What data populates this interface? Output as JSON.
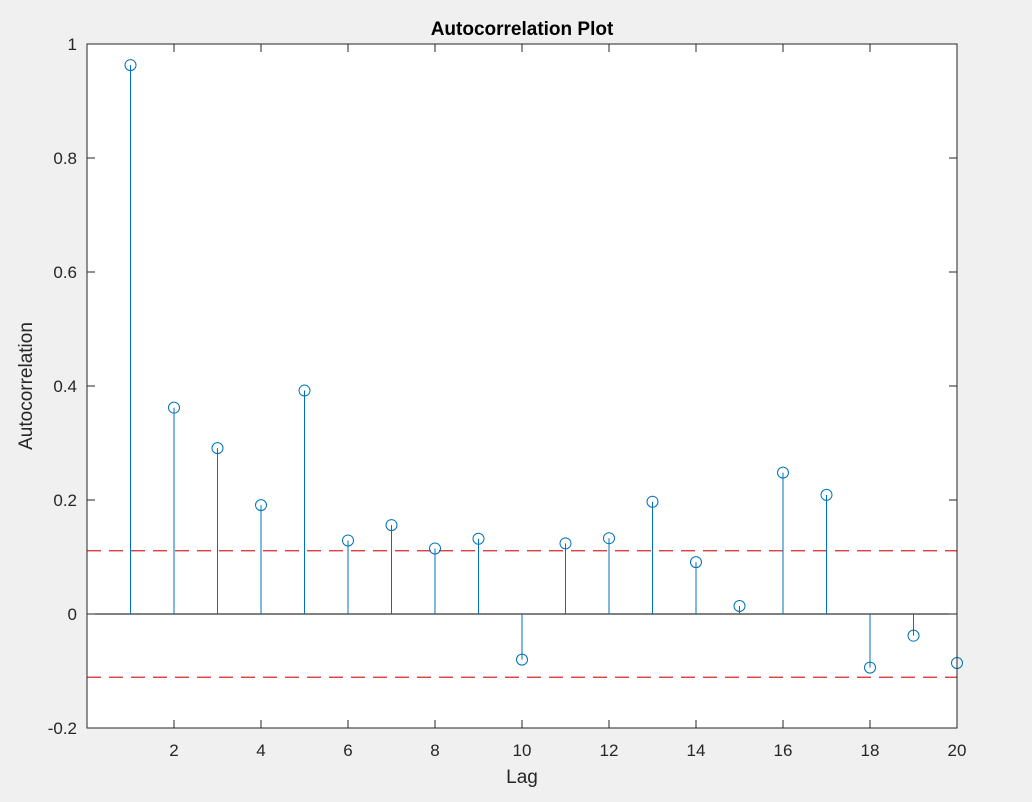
{
  "chart_data": {
    "type": "stem",
    "title": "Autocorrelation Plot",
    "xlabel": "Lag",
    "ylabel": "Autocorrelation",
    "x": [
      1,
      2,
      3,
      4,
      5,
      6,
      7,
      8,
      9,
      10,
      11,
      12,
      13,
      14,
      15,
      16,
      17,
      18,
      19,
      20
    ],
    "values": [
      0.963,
      0.362,
      0.291,
      0.191,
      0.392,
      0.129,
      0.156,
      0.115,
      0.132,
      -0.08,
      0.124,
      0.133,
      0.197,
      0.091,
      0.014,
      0.248,
      0.209,
      -0.094,
      -0.038,
      -0.086
    ],
    "xlim": [
      0,
      20
    ],
    "ylim": [
      -0.2,
      1
    ],
    "xticks": [
      2,
      4,
      6,
      8,
      10,
      12,
      14,
      16,
      18,
      20
    ],
    "xtick_labels": [
      "2",
      "4",
      "6",
      "8",
      "10",
      "12",
      "14",
      "16",
      "18",
      "20"
    ],
    "yticks": [
      -0.2,
      0,
      0.2,
      0.4,
      0.6,
      0.8,
      1
    ],
    "ytick_labels": [
      "-0.2",
      "0",
      "0.2",
      "0.4",
      "0.6",
      "0.8",
      "1"
    ],
    "confidence_bounds": [
      0.111,
      -0.111
    ],
    "grid": false,
    "colors": {
      "stem": "#0072bd",
      "bound": "#d62728",
      "axes": "#262626",
      "background": "#ffffff",
      "figure": "#f0f0f0"
    }
  }
}
